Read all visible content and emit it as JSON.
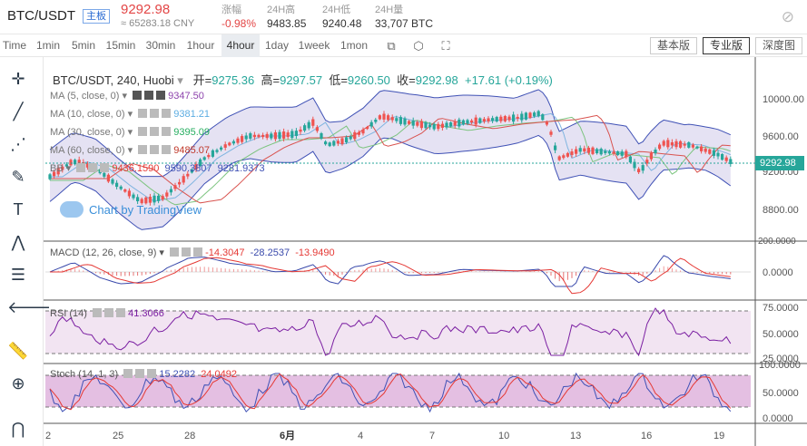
{
  "header": {
    "pair": "BTC/USDT",
    "badge": "主板",
    "price": "9292.98",
    "cny": "≈ 65283.18 CNY",
    "stats": [
      {
        "label": "涨幅",
        "value": "-0.98%"
      },
      {
        "label": "24H高",
        "value": "9483.85"
      },
      {
        "label": "24H低",
        "value": "9240.48"
      },
      {
        "label": "24H量",
        "value": "33,707 BTC"
      }
    ],
    "settings_icon": "hide-icon"
  },
  "toolbar": {
    "timeframes": [
      "Time",
      "1min",
      "5min",
      "15min",
      "30min",
      "1hour",
      "4hour",
      "1day",
      "1week",
      "1mon"
    ],
    "active_timeframe": "4hour",
    "icons": [
      "candle-type-icon",
      "indicator-icon",
      "fullscreen-icon"
    ],
    "versions": [
      "基本版",
      "专业版",
      "深度图"
    ],
    "active_version": "专业版"
  },
  "left_tools": [
    "crosshair-icon",
    "trend-line-icon",
    "fib-icon",
    "brush-icon",
    "text-icon",
    "pattern-icon",
    "measure-icon",
    "back-arrow-icon",
    "ruler-icon",
    "zoom-icon",
    "magnet-icon"
  ],
  "legend": {
    "title": "BTC/USDT, 240, Huobi",
    "open_label": "开=",
    "open": "9275.36",
    "high_label": "高=",
    "high": "9297.57",
    "low_label": "低=",
    "low": "9260.50",
    "close_label": "收=",
    "close": "9292.98",
    "change": "+17.61 (+0.19%)",
    "ma": [
      {
        "label": "MA (5, close, 0)",
        "value": "9347.50",
        "color": "#8e44ad"
      },
      {
        "label": "MA (10, close, 0)",
        "value": "9381.21",
        "color": "#5dade2"
      },
      {
        "label": "MA (30, close, 0)",
        "value": "9395.09",
        "color": "#27ae60"
      },
      {
        "label": "MA (60, close, 0)",
        "value": "9485.07",
        "color": "#c0392b"
      }
    ],
    "bb": {
      "label": "BB",
      "v1": "9436.1590",
      "v2": "9590.3807",
      "v3": "9281.9373"
    },
    "macd": {
      "label": "MACD (12, 26, close, 9)",
      "v1": "-14.3047",
      "v2": "-28.2537",
      "v3": "-13.9490"
    },
    "rsi": {
      "label": "RSI (14)",
      "value": "41.3066"
    },
    "stoch": {
      "label": "Stoch (14, 1, 3)",
      "v1": "15.2282",
      "v2": "24.0492"
    }
  },
  "watermark": "Chart by TradingView",
  "price_tag": "9292.98",
  "colors": {
    "up": "#26a69a",
    "down": "#ef5350",
    "accent": "#2a6ad2"
  },
  "chart_data": {
    "type": "candlestick",
    "price_axis_ticks": [
      "10000.00",
      "9600.00",
      "9200.00",
      "8800.00"
    ],
    "macd_axis_ticks": [
      "200.0000",
      "0.0000"
    ],
    "rsi_axis_ticks": [
      "75.0000",
      "50.0000",
      "25.0000"
    ],
    "stoch_axis_ticks": [
      "100.0000",
      "50.0000",
      "0.0000"
    ],
    "date_ticks": [
      "2",
      "25",
      "28",
      "6月",
      "4",
      "7",
      "10",
      "13",
      "16",
      "19"
    ]
  }
}
